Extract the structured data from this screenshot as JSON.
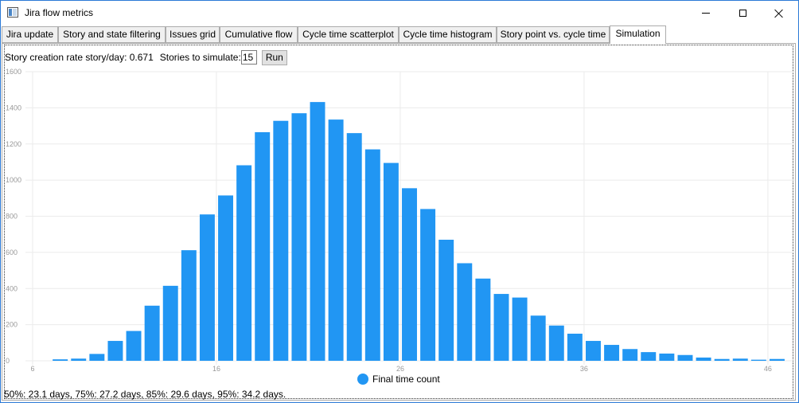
{
  "window": {
    "title": "Jira flow metrics",
    "minimize_icon": "minimize-icon",
    "maximize_icon": "maximize-icon",
    "close_icon": "close-icon"
  },
  "tabs": [
    {
      "label": "Jira update"
    },
    {
      "label": "Story and state filtering"
    },
    {
      "label": "Issues grid"
    },
    {
      "label": "Cumulative flow"
    },
    {
      "label": "Cycle time scatterplot"
    },
    {
      "label": "Cycle time histogram"
    },
    {
      "label": "Story point vs. cycle time"
    },
    {
      "label": "Simulation",
      "active": true
    }
  ],
  "simulation": {
    "rate_label": "Story creation rate story/day: 0.671",
    "stories_label": "Stories to simulate:",
    "stories_value": "15",
    "run_label": "Run",
    "summary": "50%: 23.1 days, 75%: 27.2 days, 85%: 29.6 days, 95%: 34.2 days."
  },
  "colors": {
    "bar": "#2196f3",
    "grid": "#ebebeb",
    "axis_text": "#999999"
  },
  "chart_data": {
    "type": "bar",
    "legend": "Final time count",
    "legend_position": "bottom",
    "grid": true,
    "xlim": [
      6,
      47
    ],
    "ylim": [
      0,
      1600
    ],
    "x_ticks": [
      6,
      16,
      26,
      36,
      46
    ],
    "y_ticks": [
      0,
      200,
      400,
      600,
      800,
      1000,
      1200,
      1400,
      1600
    ],
    "series": [
      {
        "name": "Final time count",
        "x": [
          8,
          9,
          10,
          11,
          12,
          13,
          14,
          15,
          16,
          17,
          18,
          19,
          20,
          21,
          22,
          23,
          24,
          25,
          26,
          27,
          28,
          29,
          30,
          31,
          32,
          33,
          34,
          35,
          36,
          37,
          38,
          39,
          40,
          41,
          42,
          43,
          44,
          45,
          46,
          47
        ],
        "values": [
          8,
          12,
          38,
          110,
          165,
          305,
          415,
          612,
          810,
          915,
          1082,
          1265,
          1328,
          1370,
          1432,
          1335,
          1260,
          1170,
          1095,
          955,
          840,
          670,
          540,
          455,
          370,
          350,
          250,
          195,
          150,
          110,
          88,
          65,
          48,
          40,
          32,
          18,
          10,
          12,
          6,
          10
        ]
      }
    ]
  }
}
